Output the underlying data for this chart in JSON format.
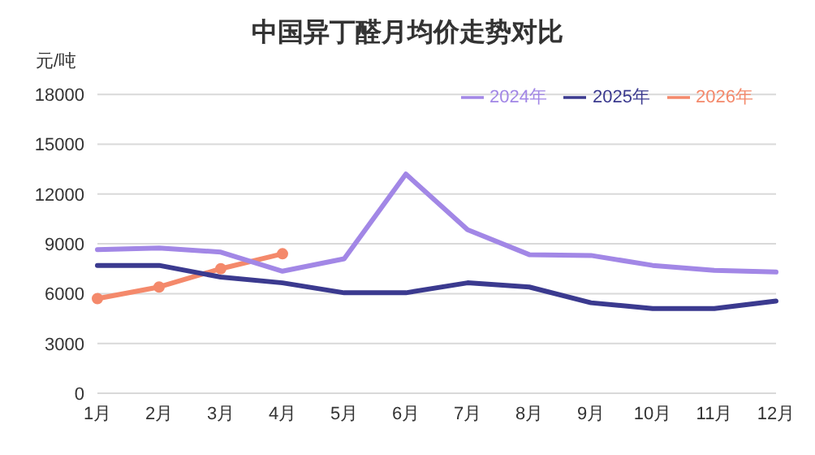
{
  "chart_data": {
    "type": "line",
    "title": "中国异丁醛月均价走势对比",
    "ylabel": "元/吨",
    "categories": [
      "1月",
      "2月",
      "3月",
      "4月",
      "5月",
      "6月",
      "7月",
      "8月",
      "9月",
      "10月",
      "11月",
      "12月"
    ],
    "series": [
      {
        "name": "2026年",
        "color": "#f4896b",
        "marker": "circle",
        "values": [
          5700,
          6400,
          7500,
          8400,
          null,
          null,
          null,
          null,
          null,
          null,
          null,
          null
        ]
      },
      {
        "name": "2025年",
        "color": "#3b3a8f",
        "marker": "none",
        "values": [
          7700,
          7700,
          7000,
          6650,
          6050,
          6050,
          6650,
          6400,
          5450,
          5100,
          5100,
          5550
        ]
      },
      {
        "name": "2024年",
        "color": "#a287e6",
        "marker": "none",
        "values": [
          8650,
          8750,
          8500,
          7350,
          8100,
          13200,
          9850,
          8350,
          8300,
          7700,
          7400,
          7300
        ]
      }
    ],
    "ylim": [
      0,
      18000
    ],
    "yticks": [
      0,
      3000,
      6000,
      9000,
      12000,
      15000,
      18000
    ],
    "grid": "y",
    "legend": "top right"
  }
}
